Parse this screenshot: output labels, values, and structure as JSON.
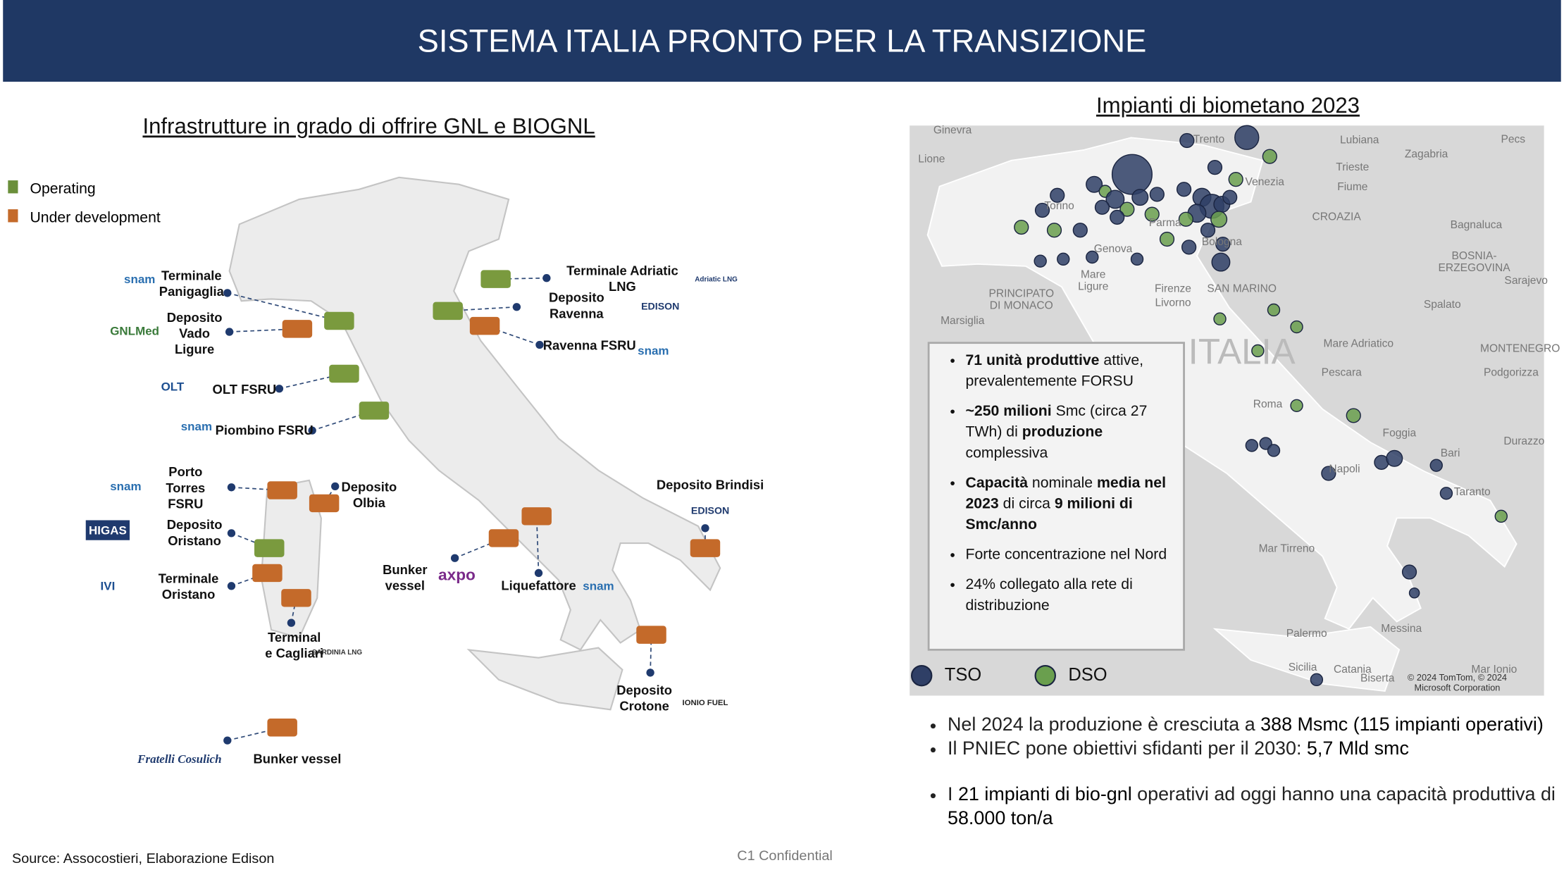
{
  "header": {
    "title": "SISTEMA ITALIA PRONTO PER LA TRANSIZIONE"
  },
  "left": {
    "title": "Infrastrutture in grado di offrire GNL e BIOGNL",
    "legend": [
      "Operating",
      "Under development"
    ],
    "labels": [
      "Terminale\nPanigaglia",
      "Deposito\nVado\nLigure",
      "OLT FSRU",
      "Piombino FSRU",
      "Porto\nTorres\nFSRU",
      "Deposito\nOristano",
      "Terminale\nOristano",
      "Terminal\ne Cagliari",
      "Deposito\nOlbia",
      "Bunker\nvessel",
      "Liquefattore",
      "Deposito Brindisi",
      "Deposito\nCrotone",
      "Bunker vessel",
      "Terminale Adriatic\nLNG",
      "Deposito\nRavenna",
      "Ravenna FSRU"
    ],
    "logos": [
      "snam",
      "GNLMed",
      "OLT",
      "snam",
      "snam",
      "HIGAS",
      "IVI",
      "SARDINIA LNG",
      "axpo",
      "snam",
      "EDISON",
      "IONIO FUEL",
      "Fratelli Cosulich",
      "Adriatic LNG",
      "EDISON",
      "snam"
    ]
  },
  "right": {
    "title": "Impianti di biometano 2023",
    "map_labels": [
      "Ginevra",
      "Lione",
      "Trento",
      "Lubiana",
      "Pecs",
      "Zagabria",
      "Trieste",
      "Venezia",
      "Fiume",
      "CROAZIA",
      "Torino",
      "Genova",
      "Mare\nLigure",
      "Parma",
      "Bologna",
      "Firenze",
      "Livorno",
      "SAN MARINO",
      "PRINCIPATO\nDI MONACO",
      "Marsiglia",
      "ITALIA",
      "Mare Adriatico",
      "BOSNIA-ERZEGOVINA",
      "Sarajevo",
      "Spalato",
      "Bagnaluca",
      "MONTENEGRO",
      "Podgorizza",
      "Pescara",
      "Roma",
      "Foggia",
      "Bari",
      "Durazzo",
      "Napoli",
      "Taranto",
      "Mar Tirreno",
      "Palermo",
      "Messina",
      "Sicilia",
      "Catania",
      "Biserta",
      "Mar Ionio",
      "© 2024 TomTom, © 2024 Microsoft Corporation"
    ],
    "infobox": [
      [
        {
          "text": "71 unità produttive",
          "bold": true
        },
        {
          "text": " attive, prevalentemente FORSU"
        }
      ],
      [
        {
          "text": "~250 milioni",
          "bold": true
        },
        {
          "text": " Smc (circa 27 TWh) di "
        },
        {
          "text": "produzione",
          "bold": true
        },
        {
          "text": " complessiva"
        }
      ],
      [
        {
          "text": "Capacità",
          "bold": true
        },
        {
          "text": " nominale "
        },
        {
          "text": "media nel 2023",
          "bold": true
        },
        {
          "text": " di circa "
        },
        {
          "text": "9 milioni di Smc/anno",
          "bold": true
        }
      ],
      [
        {
          "text": "Forte concentrazione nel Nord"
        }
      ],
      [
        {
          "text": "24% collegato alla rete di distribuzione"
        }
      ]
    ],
    "legend": [
      {
        "name": "TSO",
        "color": "#2f3f66"
      },
      {
        "name": "DSO",
        "color": "#6a9f4e"
      }
    ],
    "bullets": [
      [
        {
          "text": "Nel 2024 la produzione è cresciuta a "
        },
        {
          "text": "388 Msmc (115 impianti operativi)",
          "strong": true
        }
      ],
      [
        {
          "text": "Il PNIEC pone obiettivi sfidanti per il 2030: "
        },
        {
          "text": "5,7 Mld smc",
          "strong": true
        }
      ],
      [
        {
          "text": "I "
        },
        {
          "text": "21 impianti di bio-gnl",
          "strong": true
        },
        {
          "text": " operativi  ad oggi hanno una capacità produttiva di "
        },
        {
          "text": "58.000 ton/a",
          "strong": true
        }
      ]
    ]
  },
  "footer": {
    "source": "Source: Assocostieri, Elaborazione Edison",
    "classification": "C1 Confidential"
  }
}
